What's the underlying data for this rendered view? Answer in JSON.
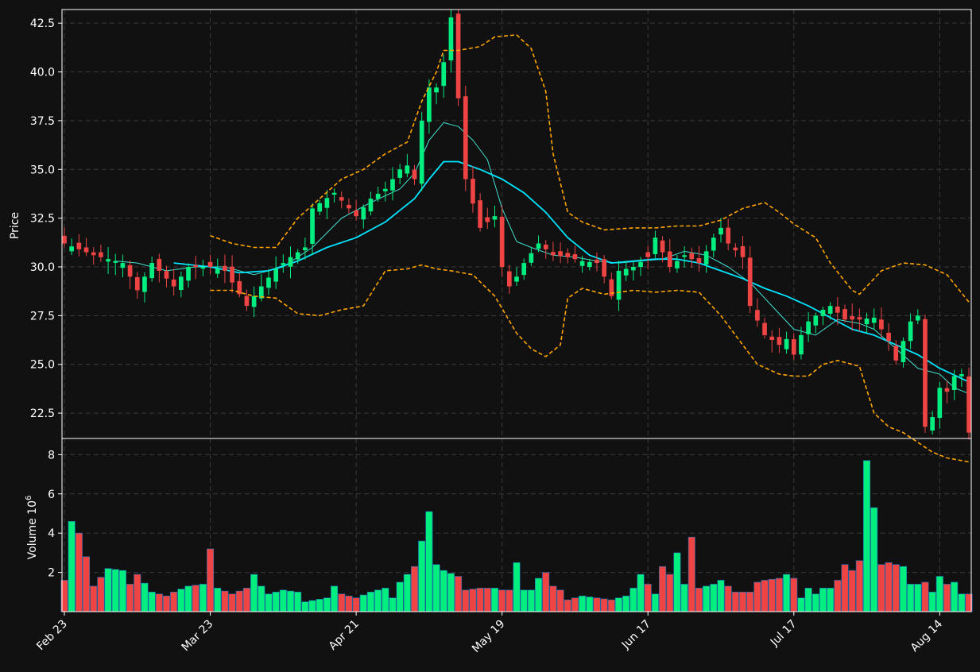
{
  "chart_data": {
    "type": "candlestick",
    "theme": {
      "background": "#111111",
      "grid": "#3a3a3a",
      "axis": "#ffffff",
      "text": "#ffffff"
    },
    "colors": {
      "up": "#00ee80",
      "down": "#ee4444",
      "bollinger": "#ffa500",
      "ma_long": "#00e5ff",
      "ma_short": "#40e0d0"
    },
    "grid": true,
    "price_panel": {
      "ylabel": "Price",
      "ylim": [
        21.2,
        43.2
      ],
      "yticks": [
        22.5,
        25.0,
        27.5,
        30.0,
        32.5,
        35.0,
        37.5,
        40.0,
        42.5
      ],
      "ytick_labels": [
        "22.5",
        "25.0",
        "27.5",
        "30.0",
        "32.5",
        "35.0",
        "37.5",
        "40.0",
        "42.5"
      ]
    },
    "volume_panel": {
      "ylabel": "Volume  10",
      "ylabel_exponent": "6",
      "ylim": [
        0,
        8.5
      ],
      "yticks": [
        2,
        4,
        6,
        8
      ],
      "ytick_labels": [
        "2",
        "4",
        "6",
        "8"
      ]
    },
    "x_axis": {
      "n_bars": 125,
      "ticks": [
        {
          "index": 0,
          "label": "Feb 23"
        },
        {
          "index": 20,
          "label": "Mar 23"
        },
        {
          "index": 40,
          "label": "Apr 21"
        },
        {
          "index": 60,
          "label": "May 19"
        },
        {
          "index": 80,
          "label": "Jun 17"
        },
        {
          "index": 100,
          "label": "Jul 17"
        },
        {
          "index": 120,
          "label": "Aug 14"
        }
      ]
    },
    "anchors": {
      "close": [
        [
          0,
          31.2
        ],
        [
          4,
          30.6
        ],
        [
          8,
          30.2
        ],
        [
          10,
          28.8
        ],
        [
          12,
          30.2
        ],
        [
          15,
          29.0
        ],
        [
          17,
          30.0
        ],
        [
          20,
          30.0
        ],
        [
          22,
          29.8
        ],
        [
          25,
          28.0
        ],
        [
          27,
          29.0
        ],
        [
          29,
          29.9
        ],
        [
          31,
          30.5
        ],
        [
          33,
          31.0
        ],
        [
          34,
          33.0
        ],
        [
          37,
          33.8
        ],
        [
          40,
          32.6
        ],
        [
          42,
          33.5
        ],
        [
          44,
          34.0
        ],
        [
          46,
          35.0
        ],
        [
          47,
          35.2
        ],
        [
          48,
          34.5
        ],
        [
          49,
          37.5
        ],
        [
          50,
          39.2
        ],
        [
          51,
          39.2
        ],
        [
          52,
          40.5
        ],
        [
          53,
          42.8
        ],
        [
          55,
          34.5
        ],
        [
          57,
          32.0
        ],
        [
          59,
          32.6
        ],
        [
          60,
          30.0
        ],
        [
          61,
          29.0
        ],
        [
          62,
          29.5
        ],
        [
          63,
          30.2
        ],
        [
          65,
          31.2
        ],
        [
          67,
          30.6
        ],
        [
          69,
          30.5
        ],
        [
          71,
          30.3
        ],
        [
          73,
          30.2
        ],
        [
          74,
          29.5
        ],
        [
          75,
          28.5
        ],
        [
          76,
          29.8
        ],
        [
          78,
          30.0
        ],
        [
          80,
          30.5
        ],
        [
          81,
          31.5
        ],
        [
          83,
          30.0
        ],
        [
          85,
          30.6
        ],
        [
          87,
          30.2
        ],
        [
          88,
          30.8
        ],
        [
          89,
          31.5
        ],
        [
          90,
          32.0
        ],
        [
          91,
          31.2
        ],
        [
          93,
          30.5
        ],
        [
          94,
          28.0
        ],
        [
          96,
          26.5
        ],
        [
          98,
          26.0
        ],
        [
          99,
          26.3
        ],
        [
          100,
          25.5
        ],
        [
          101,
          26.5
        ],
        [
          102,
          27.2
        ],
        [
          104,
          27.8
        ],
        [
          105,
          28.0
        ],
        [
          107,
          27.3
        ],
        [
          109,
          27.3
        ],
        [
          111,
          27.4
        ],
        [
          113,
          26.2
        ],
        [
          114,
          25.2
        ],
        [
          115,
          26.2
        ],
        [
          116,
          27.2
        ],
        [
          117,
          27.5
        ],
        [
          118,
          21.8
        ],
        [
          119,
          22.3
        ],
        [
          120,
          23.8
        ],
        [
          121,
          23.6
        ],
        [
          122,
          24.4
        ],
        [
          123,
          24.5
        ],
        [
          124,
          21.5
        ]
      ],
      "volume": [
        [
          0,
          1.6
        ],
        [
          1,
          4.6
        ],
        [
          2,
          4.0
        ],
        [
          3,
          2.8
        ],
        [
          4,
          1.3
        ],
        [
          6,
          2.2
        ],
        [
          8,
          2.1
        ],
        [
          9,
          1.4
        ],
        [
          10,
          1.9
        ],
        [
          12,
          1.0
        ],
        [
          14,
          0.8
        ],
        [
          15,
          1.0
        ],
        [
          17,
          1.3
        ],
        [
          19,
          1.4
        ],
        [
          20,
          3.2
        ],
        [
          21,
          1.2
        ],
        [
          23,
          0.9
        ],
        [
          25,
          1.2
        ],
        [
          26,
          1.9
        ],
        [
          27,
          1.3
        ],
        [
          28,
          0.9
        ],
        [
          30,
          1.1
        ],
        [
          32,
          1.0
        ],
        [
          33,
          0.5
        ],
        [
          36,
          0.7
        ],
        [
          37,
          1.3
        ],
        [
          38,
          0.9
        ],
        [
          40,
          0.7
        ],
        [
          42,
          1.0
        ],
        [
          44,
          1.2
        ],
        [
          45,
          0.7
        ],
        [
          46,
          1.5
        ],
        [
          47,
          1.9
        ],
        [
          48,
          2.3
        ],
        [
          49,
          3.6
        ],
        [
          50,
          5.1
        ],
        [
          51,
          2.4
        ],
        [
          52,
          2.1
        ],
        [
          54,
          1.8
        ],
        [
          55,
          1.1
        ],
        [
          57,
          1.2
        ],
        [
          59,
          1.2
        ],
        [
          60,
          1.1
        ],
        [
          61,
          1.1
        ],
        [
          62,
          2.5
        ],
        [
          63,
          1.1
        ],
        [
          64,
          1.1
        ],
        [
          65,
          1.7
        ],
        [
          66,
          2.0
        ],
        [
          67,
          1.3
        ],
        [
          68,
          1.1
        ],
        [
          69,
          0.6
        ],
        [
          71,
          0.8
        ],
        [
          73,
          0.7
        ],
        [
          75,
          0.6
        ],
        [
          77,
          0.8
        ],
        [
          78,
          1.2
        ],
        [
          79,
          1.9
        ],
        [
          80,
          1.4
        ],
        [
          81,
          0.9
        ],
        [
          82,
          2.3
        ],
        [
          83,
          1.9
        ],
        [
          84,
          3.0
        ],
        [
          85,
          1.4
        ],
        [
          86,
          3.8
        ],
        [
          87,
          1.2
        ],
        [
          89,
          1.4
        ],
        [
          90,
          1.6
        ],
        [
          91,
          1.3
        ],
        [
          92,
          1.0
        ],
        [
          94,
          1.0
        ],
        [
          95,
          1.5
        ],
        [
          96,
          1.6
        ],
        [
          98,
          1.7
        ],
        [
          99,
          1.9
        ],
        [
          100,
          1.7
        ],
        [
          101,
          0.7
        ],
        [
          102,
          1.2
        ],
        [
          103,
          0.9
        ],
        [
          104,
          1.2
        ],
        [
          105,
          1.2
        ],
        [
          106,
          1.6
        ],
        [
          107,
          2.4
        ],
        [
          108,
          2.1
        ],
        [
          109,
          2.6
        ],
        [
          110,
          7.7
        ],
        [
          111,
          5.3
        ],
        [
          112,
          2.4
        ],
        [
          113,
          2.5
        ],
        [
          114,
          2.4
        ],
        [
          115,
          2.3
        ],
        [
          116,
          1.4
        ],
        [
          117,
          1.4
        ],
        [
          118,
          1.5
        ],
        [
          119,
          1.0
        ],
        [
          120,
          1.8
        ],
        [
          121,
          1.4
        ],
        [
          122,
          1.5
        ],
        [
          123,
          0.9
        ],
        [
          124,
          0.9
        ]
      ]
    },
    "overlays": {
      "ma_long": [
        [
          15,
          30.2
        ],
        [
          20,
          30.0
        ],
        [
          24,
          29.7
        ],
        [
          28,
          29.8
        ],
        [
          32,
          30.3
        ],
        [
          36,
          31.0
        ],
        [
          40,
          31.5
        ],
        [
          44,
          32.3
        ],
        [
          48,
          33.5
        ],
        [
          50,
          34.5
        ],
        [
          52,
          35.4
        ],
        [
          54,
          35.4
        ],
        [
          57,
          35.0
        ],
        [
          60,
          34.5
        ],
        [
          63,
          33.8
        ],
        [
          66,
          32.8
        ],
        [
          69,
          31.5
        ],
        [
          72,
          30.6
        ],
        [
          75,
          30.2
        ],
        [
          78,
          30.3
        ],
        [
          81,
          30.4
        ],
        [
          84,
          30.4
        ],
        [
          87,
          30.2
        ],
        [
          90,
          29.8
        ],
        [
          93,
          29.4
        ],
        [
          96,
          28.9
        ],
        [
          99,
          28.5
        ],
        [
          102,
          28.0
        ],
        [
          105,
          27.4
        ],
        [
          108,
          26.8
        ],
        [
          111,
          26.5
        ],
        [
          114,
          26.0
        ],
        [
          117,
          25.5
        ],
        [
          120,
          24.8
        ],
        [
          124,
          24.1
        ]
      ],
      "ma_short": [
        [
          7,
          30.3
        ],
        [
          10,
          30.2
        ],
        [
          14,
          29.8
        ],
        [
          18,
          30.0
        ],
        [
          22,
          30.0
        ],
        [
          26,
          29.6
        ],
        [
          30,
          30.0
        ],
        [
          34,
          31.0
        ],
        [
          38,
          32.5
        ],
        [
          42,
          33.3
        ],
        [
          46,
          34.0
        ],
        [
          48,
          34.8
        ],
        [
          50,
          36.5
        ],
        [
          52,
          37.4
        ],
        [
          54,
          37.2
        ],
        [
          56,
          36.5
        ],
        [
          58,
          35.5
        ],
        [
          60,
          33.0
        ],
        [
          62,
          31.3
        ],
        [
          64,
          31.0
        ],
        [
          67,
          30.6
        ],
        [
          70,
          30.5
        ],
        [
          73,
          30.3
        ],
        [
          76,
          30.2
        ],
        [
          79,
          30.3
        ],
        [
          82,
          30.4
        ],
        [
          85,
          30.8
        ],
        [
          88,
          30.6
        ],
        [
          91,
          30.0
        ],
        [
          94,
          29.2
        ],
        [
          97,
          28.0
        ],
        [
          100,
          26.8
        ],
        [
          103,
          26.5
        ],
        [
          106,
          27.3
        ],
        [
          109,
          27.1
        ],
        [
          111,
          26.8
        ],
        [
          114,
          25.8
        ],
        [
          117,
          24.8
        ],
        [
          120,
          24.5
        ],
        [
          122,
          23.8
        ],
        [
          124,
          23.5
        ]
      ],
      "bb_upper": [
        [
          20,
          31.6
        ],
        [
          23,
          31.2
        ],
        [
          26,
          31.0
        ],
        [
          29,
          31.0
        ],
        [
          32,
          32.5
        ],
        [
          35,
          33.5
        ],
        [
          38,
          34.5
        ],
        [
          41,
          35.0
        ],
        [
          44,
          35.8
        ],
        [
          47,
          36.4
        ],
        [
          49,
          38.5
        ],
        [
          51,
          40.0
        ],
        [
          52,
          41.1
        ],
        [
          54,
          41.1
        ],
        [
          57,
          41.3
        ],
        [
          59,
          41.8
        ],
        [
          62,
          41.9
        ],
        [
          64,
          41.2
        ],
        [
          66,
          39.0
        ],
        [
          67,
          35.8
        ],
        [
          69,
          32.8
        ],
        [
          71,
          32.3
        ],
        [
          74,
          31.9
        ],
        [
          78,
          32.0
        ],
        [
          81,
          32.0
        ],
        [
          84,
          32.1
        ],
        [
          87,
          32.1
        ],
        [
          90,
          32.4
        ],
        [
          93,
          33.0
        ],
        [
          96,
          33.3
        ],
        [
          98,
          32.8
        ],
        [
          100,
          32.2
        ],
        [
          103,
          31.5
        ],
        [
          105,
          30.2
        ],
        [
          108,
          28.8
        ],
        [
          109,
          28.6
        ],
        [
          112,
          29.8
        ],
        [
          115,
          30.2
        ],
        [
          118,
          30.1
        ],
        [
          121,
          29.6
        ],
        [
          124,
          28.2
        ]
      ],
      "bb_lower": [
        [
          20,
          28.8
        ],
        [
          23,
          28.8
        ],
        [
          26,
          28.5
        ],
        [
          29,
          28.4
        ],
        [
          32,
          27.6
        ],
        [
          35,
          27.5
        ],
        [
          38,
          27.8
        ],
        [
          41,
          28.0
        ],
        [
          44,
          29.8
        ],
        [
          47,
          29.9
        ],
        [
          49,
          30.1
        ],
        [
          51,
          29.9
        ],
        [
          53,
          29.8
        ],
        [
          56,
          29.6
        ],
        [
          59,
          28.5
        ],
        [
          62,
          26.6
        ],
        [
          64,
          25.8
        ],
        [
          66,
          25.4
        ],
        [
          68,
          26.0
        ],
        [
          69,
          28.4
        ],
        [
          71,
          28.9
        ],
        [
          74,
          28.6
        ],
        [
          78,
          28.8
        ],
        [
          81,
          28.7
        ],
        [
          84,
          28.8
        ],
        [
          87,
          28.7
        ],
        [
          90,
          27.5
        ],
        [
          93,
          26.0
        ],
        [
          95,
          25.0
        ],
        [
          98,
          24.5
        ],
        [
          100,
          24.4
        ],
        [
          102,
          24.4
        ],
        [
          104,
          25.0
        ],
        [
          106,
          25.2
        ],
        [
          108,
          25.0
        ],
        [
          109,
          24.9
        ],
        [
          111,
          22.5
        ],
        [
          113,
          21.8
        ],
        [
          115,
          21.5
        ],
        [
          117,
          21.0
        ],
        [
          119,
          20.5
        ],
        [
          121,
          20.2
        ],
        [
          124,
          20.0
        ]
      ]
    }
  }
}
